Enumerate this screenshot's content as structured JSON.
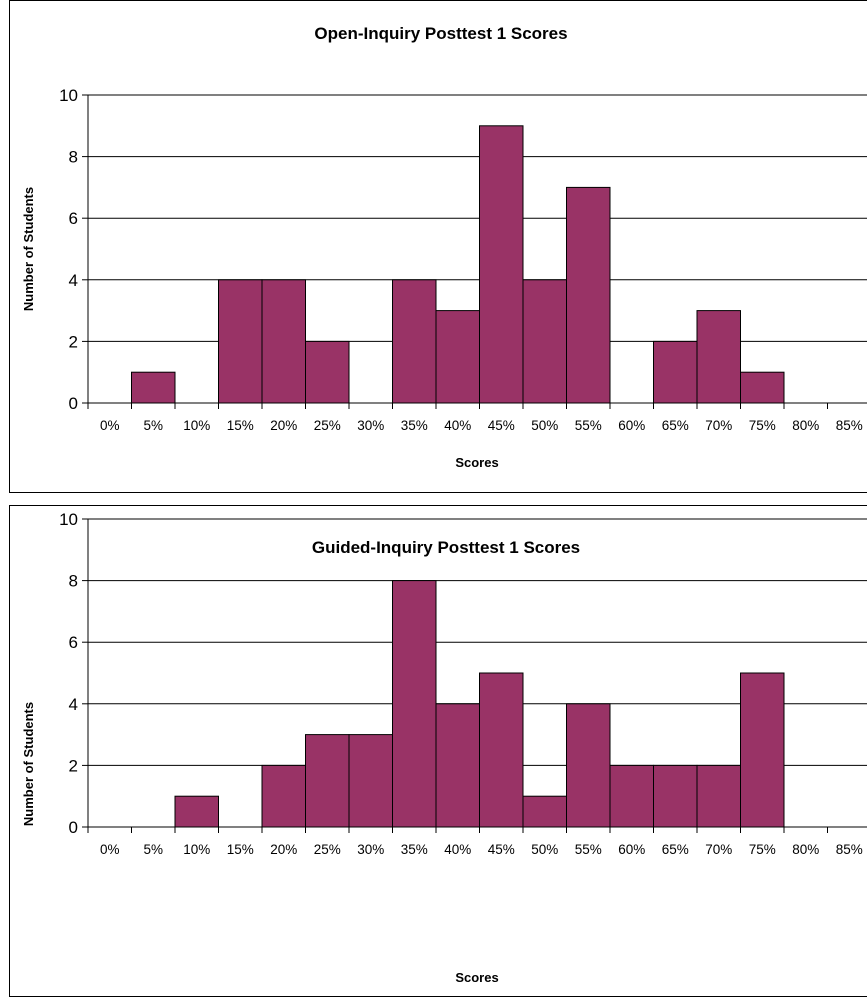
{
  "chart_data": [
    {
      "type": "bar",
      "title": "Open-Inquiry Posttest 1 Scores",
      "xlabel": "Scores",
      "ylabel": "Number of Students",
      "categories": [
        "0%",
        "5%",
        "10%",
        "15%",
        "20%",
        "25%",
        "30%",
        "35%",
        "40%",
        "45%",
        "50%",
        "55%",
        "60%",
        "65%",
        "70%",
        "75%",
        "80%",
        "85%"
      ],
      "values": [
        0,
        1,
        0,
        4,
        4,
        2,
        0,
        4,
        3,
        9,
        4,
        7,
        0,
        2,
        3,
        1,
        0,
        0
      ],
      "ylim": [
        0,
        10
      ],
      "yticks": [
        "0",
        "2",
        "4",
        "6",
        "8",
        "10"
      ],
      "grid": true,
      "legend": "none",
      "bar_color": "#993366"
    },
    {
      "type": "bar",
      "title": "Guided-Inquiry Posttest 1 Scores",
      "xlabel": "Scores",
      "ylabel": "Number of Students",
      "categories": [
        "0%",
        "5%",
        "10%",
        "15%",
        "20%",
        "25%",
        "30%",
        "35%",
        "40%",
        "45%",
        "50%",
        "55%",
        "60%",
        "65%",
        "70%",
        "75%",
        "80%",
        "85%"
      ],
      "values": [
        0,
        0,
        1,
        0,
        2,
        3,
        3,
        8,
        4,
        5,
        1,
        4,
        2,
        2,
        2,
        5,
        0,
        0
      ],
      "ylim": [
        0,
        10
      ],
      "yticks": [
        "0",
        "2",
        "4",
        "6",
        "8",
        "10"
      ],
      "grid": true,
      "legend": "none",
      "bar_color": "#993366"
    }
  ]
}
